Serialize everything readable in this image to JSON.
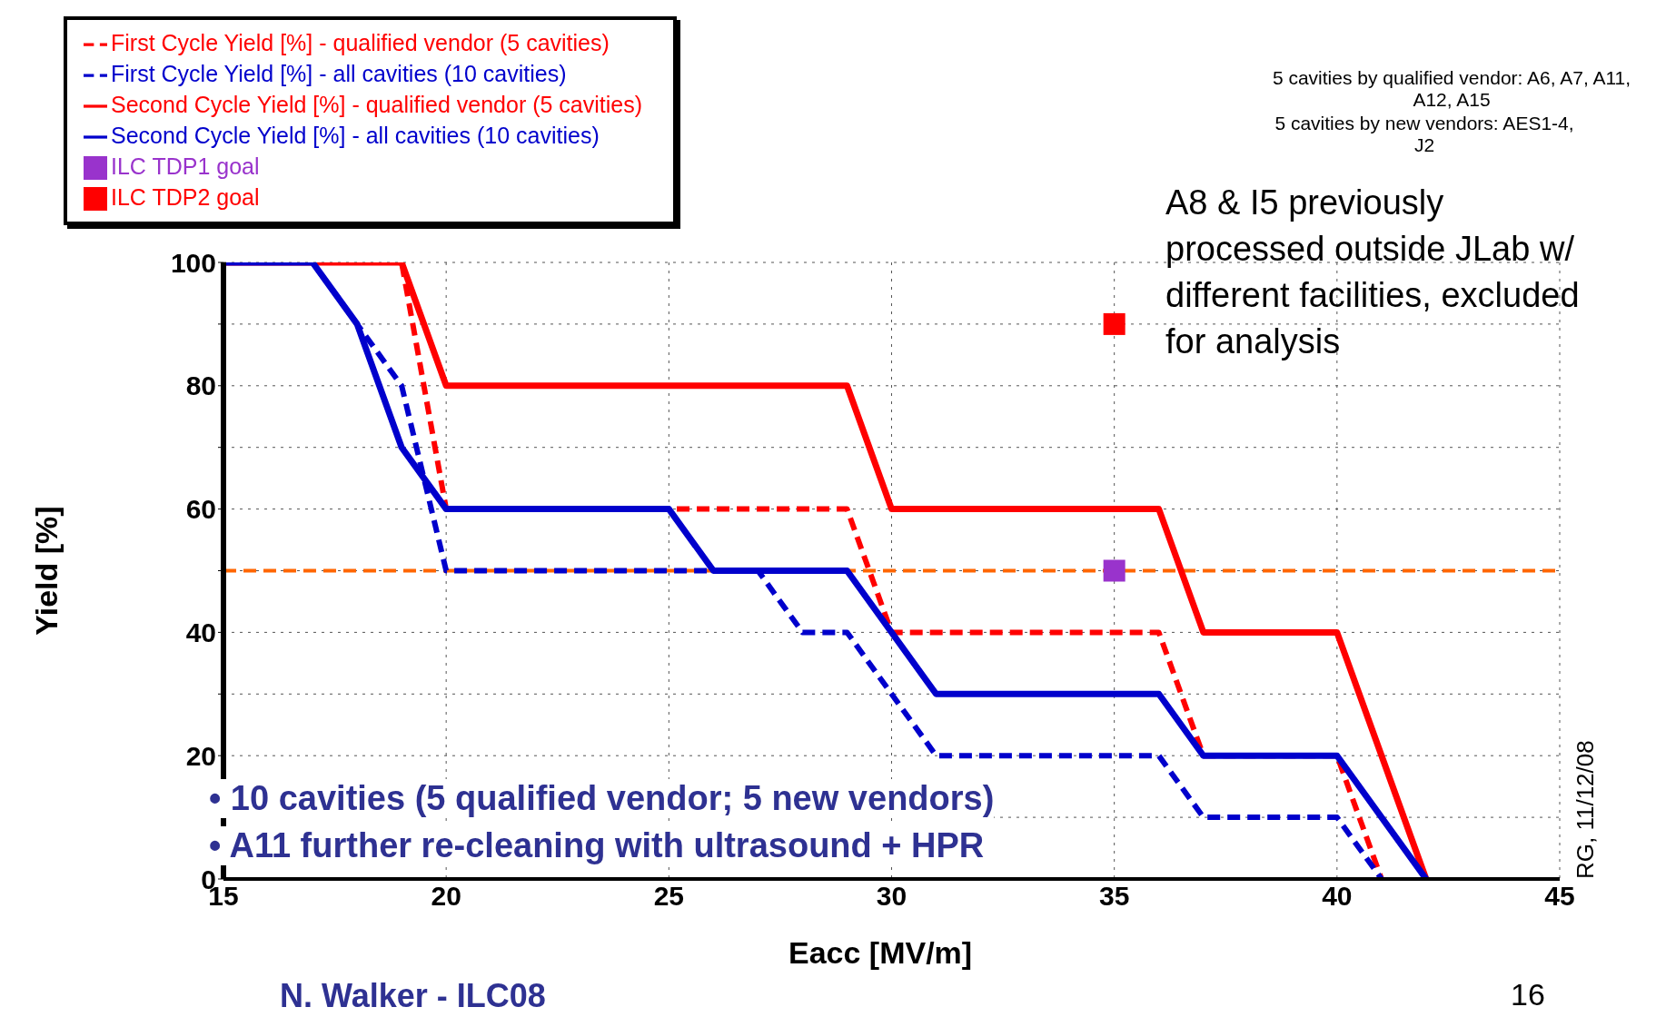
{
  "chart_data": {
    "type": "line",
    "xlabel": "Eacc [MV/m]",
    "ylabel": "Yield [%]",
    "xlim": [
      15,
      45
    ],
    "xticks": [
      15,
      20,
      25,
      30,
      35,
      40,
      45
    ],
    "ylim": [
      0,
      100
    ],
    "yticks": [
      0,
      {
        "value": 10,
        "label": null
      },
      20,
      {
        "value": 30,
        "label": null
      },
      40,
      {
        "value": 50,
        "label": null
      },
      60,
      {
        "value": 70,
        "label": null
      },
      80,
      {
        "value": 90,
        "label": null
      },
      100
    ],
    "grid": true,
    "legend": "top left",
    "marker": "none",
    "series": [
      {
        "name": "First Cycle Yield [%] - qualified vendor (5 cavities)",
        "color": "#ff0000",
        "line_style": "dashed",
        "x": [
          15,
          19,
          20,
          29,
          30,
          36,
          37,
          40,
          41
        ],
        "values": [
          100,
          100,
          60,
          60,
          40,
          40,
          20,
          20,
          0
        ]
      },
      {
        "name": "First Cycle Yield [%] - all cavities (10 cavities)",
        "color": "#0000cc",
        "line_style": "dashed",
        "x": [
          15,
          17,
          18,
          19,
          20,
          27,
          28,
          29,
          30,
          31,
          36,
          37,
          40,
          41
        ],
        "values": [
          100,
          100,
          90,
          80,
          50,
          50,
          40,
          40,
          30,
          20,
          20,
          10,
          10,
          0
        ]
      },
      {
        "name": "Second Cycle Yield [%] - qualified vendor (5 cavities)",
        "color": "#ff0000",
        "line_style": "solid",
        "x": [
          15,
          19,
          20,
          29,
          30,
          36,
          37,
          40,
          42
        ],
        "values": [
          100,
          100,
          80,
          80,
          60,
          60,
          40,
          40,
          0
        ]
      },
      {
        "name": "Second Cycle Yield [%] - all cavities (10 cavities)",
        "color": "#0000cc",
        "line_style": "solid",
        "x": [
          15,
          17,
          18,
          19,
          20,
          25,
          26,
          29,
          31,
          36,
          37,
          40,
          42
        ],
        "values": [
          100,
          100,
          90,
          70,
          60,
          60,
          50,
          50,
          30,
          30,
          20,
          20,
          0
        ]
      },
      {
        "name": "ILC TDP1 goal",
        "type": "scatter",
        "marker": "square",
        "color": "#9933cc",
        "x": [
          35
        ],
        "values": [
          50
        ]
      },
      {
        "name": "ILC TDP2 goal",
        "type": "scatter",
        "marker": "square",
        "color": "#ff0000",
        "x": [
          35
        ],
        "values": [
          90
        ]
      }
    ],
    "ref_lines": [
      {
        "axis": "y",
        "value": 50,
        "label": null,
        "color": "#ff6600",
        "line_style": "dashed"
      }
    ],
    "annotations": [
      "5 cavities by qualified vendor: A6, A7, A11, A12, A15",
      "5 cavities by new vendors: AES1-4, J2",
      "A8 & I5 previously processed outside JLab w/ different facilities, excluded for analysis",
      "• 10 cavities (5 qualified vendor; 5 new vendors)",
      "• A11 further re-cleaning with ultrasound + HPR",
      "RG, 11/12/08",
      "N. Walker - ILC08",
      "16"
    ]
  }
}
